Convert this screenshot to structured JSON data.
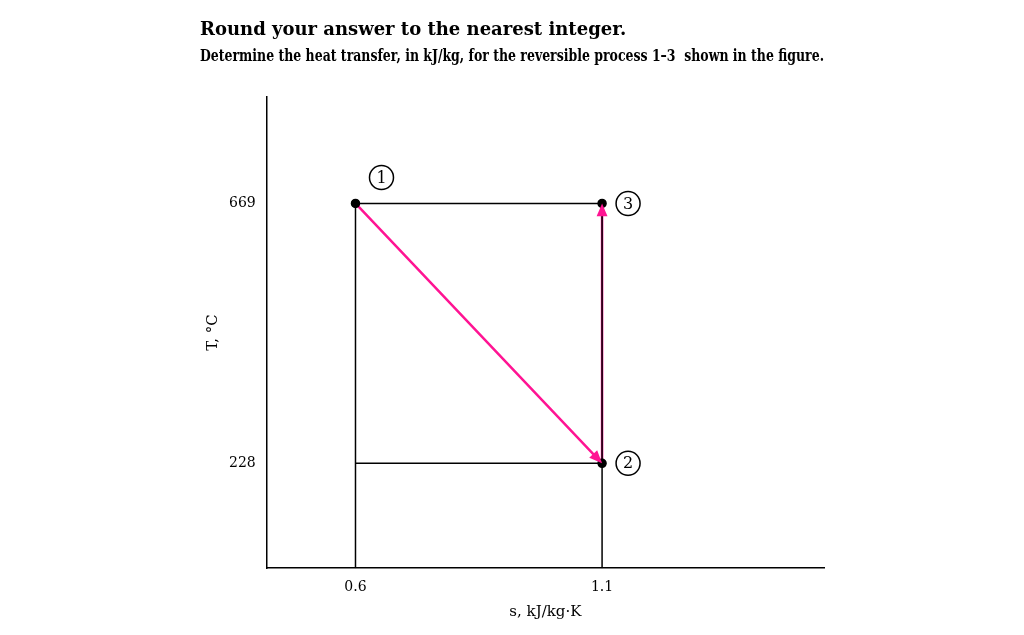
{
  "chart_data": {
    "type": "line",
    "title": "Round your answer to the nearest integer.",
    "subtitle": "Determine the heat transfer, in kJ/kg, for the reversible process 1–3  shown in the figure.",
    "x_label": "s, kJ/kg·K",
    "y_label": "T, °C",
    "xlim": [
      0.42,
      1.55
    ],
    "ylim": [
      50,
      850
    ],
    "xticks": [
      0.6,
      1.1
    ],
    "yticks": [
      228,
      669
    ],
    "grid": false,
    "series": [
      {
        "type": "line",
        "color": "#000000",
        "x": [
          0.6,
          0.6,
          1.1,
          1.1
        ],
        "values": [
          50,
          669,
          669,
          50
        ]
      },
      {
        "type": "line",
        "color": "#000000",
        "x": [
          0.6,
          1.1
        ],
        "values": [
          228,
          228
        ]
      },
      {
        "type": "line",
        "color": "#FF1493",
        "line_style": "arrow",
        "x": [
          0.6,
          1.1,
          1.1
        ],
        "values": [
          669,
          228,
          669
        ]
      },
      {
        "type": "scatter",
        "color": "#000000",
        "marker": "circle",
        "x": [
          0.6,
          1.1,
          1.1
        ],
        "values": [
          669,
          228,
          669
        ]
      }
    ],
    "annotations": [
      {
        "text": "1",
        "x": 0.6,
        "y": 669
      },
      {
        "text": "2",
        "x": 1.1,
        "y": 228
      },
      {
        "text": "3",
        "x": 1.1,
        "y": 669
      }
    ]
  }
}
